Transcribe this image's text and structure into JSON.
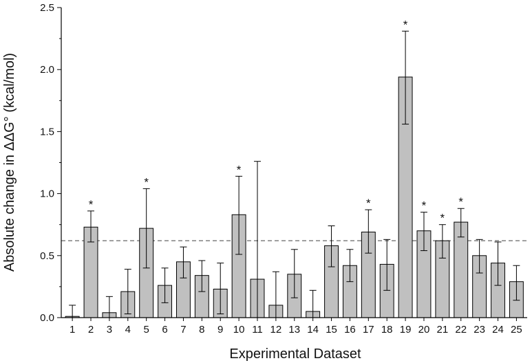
{
  "chart_data": {
    "type": "bar",
    "title": "",
    "xlabel": "Experimental Dataset",
    "ylabel": "Absolute change in ΔΔG° (kcal/mol)",
    "ylim": [
      0,
      2.5
    ],
    "yticks": [
      "0.0",
      "0.5",
      "1.0",
      "1.5",
      "2.0",
      "2.5"
    ],
    "grid": false,
    "bar_color": "#c0c0c0",
    "reference_line": {
      "value": 0.62,
      "style": "dashed",
      "color": "#666666"
    },
    "categories": [
      "1",
      "2",
      "3",
      "4",
      "5",
      "6",
      "7",
      "8",
      "9",
      "10",
      "11",
      "12",
      "13",
      "14",
      "15",
      "16",
      "17",
      "18",
      "19",
      "20",
      "21",
      "22",
      "23",
      "24",
      "25"
    ],
    "values": [
      0.01,
      0.73,
      0.04,
      0.21,
      0.72,
      0.26,
      0.45,
      0.34,
      0.23,
      0.83,
      0.31,
      0.1,
      0.35,
      0.05,
      0.58,
      0.42,
      0.69,
      0.43,
      1.94,
      0.7,
      0.62,
      0.77,
      0.5,
      0.44,
      0.29
    ],
    "error_lower": [
      0.0,
      0.61,
      0.0,
      0.03,
      0.4,
      0.12,
      0.32,
      0.21,
      0.03,
      0.51,
      0.0,
      0.0,
      0.16,
      0.0,
      0.41,
      0.29,
      0.52,
      0.22,
      1.56,
      0.54,
      0.48,
      0.65,
      0.36,
      0.26,
      0.14
    ],
    "error_upper": [
      0.1,
      0.86,
      0.17,
      0.39,
      1.04,
      0.4,
      0.57,
      0.46,
      0.44,
      1.14,
      1.26,
      0.37,
      0.55,
      0.22,
      0.74,
      0.55,
      0.87,
      0.63,
      2.31,
      0.85,
      0.75,
      0.88,
      0.63,
      0.61,
      0.42
    ],
    "significance_label": "*",
    "significant": [
      "2",
      "5",
      "10",
      "17",
      "19",
      "20",
      "21",
      "22"
    ]
  }
}
